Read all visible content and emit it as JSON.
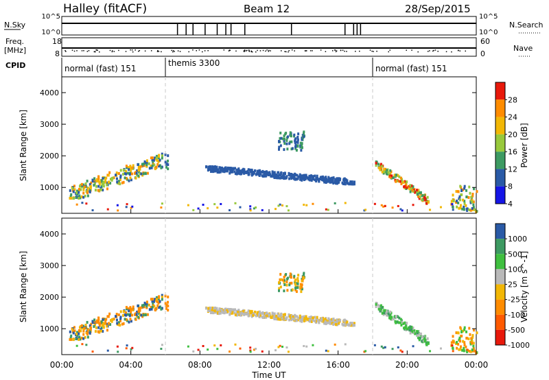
{
  "header": {
    "station": "Halley (fitACF)",
    "beam": "Beam 12",
    "date": "28/Sep/2015"
  },
  "strips": {
    "nsky_label": "N.Sky",
    "nsky_ticks": [
      "10^5",
      "10^0"
    ],
    "nsearch_label": "N.Search",
    "nsearch_ticks": [
      "10^5",
      "10^0"
    ],
    "freq_label": "Freq.",
    "freq_unit": "[MHz]",
    "freq_ticks": [
      "18",
      "8"
    ],
    "nave_label": "Nave",
    "nave_ticks": [
      "60",
      "0"
    ],
    "cpid_label": "CPID",
    "cpid_segments": [
      {
        "label": "normal (fast) 151",
        "start_h": 0,
        "end_h": 6
      },
      {
        "label": "themis 3300",
        "start_h": 6,
        "end_h": 18
      },
      {
        "label": "normal (fast) 151",
        "start_h": 18,
        "end_h": 24
      }
    ],
    "nsky_drops_h": [
      6.7,
      7.2,
      7.6,
      8.3,
      9.0,
      9.5,
      9.8,
      10.6,
      13.3,
      16.4,
      16.9,
      17.1,
      17.3
    ]
  },
  "chart_data": [
    {
      "type": "heatmap",
      "ylabel": "Slant Range [km]",
      "yticks": [
        1000,
        2000,
        3000,
        4000
      ],
      "ylim": [
        180,
        4500
      ],
      "xlim": [
        0,
        24
      ],
      "colorbar": {
        "label": "Power [dB]",
        "ticks": [
          "28",
          "24",
          "20",
          "16",
          "12",
          "8",
          "4"
        ],
        "colors": [
          "#e8190b",
          "#ff8c00",
          "#f2b705",
          "#98c93c",
          "#3d9a62",
          "#2a5aa6",
          "#1515e6"
        ]
      },
      "regions": [
        {
          "x": [
            0.4,
            5.8
          ],
          "y": [
            700,
            2100
          ],
          "color_idx": [
            1,
            2,
            3,
            4,
            5
          ]
        },
        {
          "x": [
            5.9,
            6.1
          ],
          "y": [
            1600,
            2200
          ],
          "color_idx": [
            4,
            5
          ]
        },
        {
          "x": [
            8.3,
            16.9
          ],
          "y": [
            1150,
            1700
          ],
          "color_idx": [
            5
          ]
        },
        {
          "x": [
            12.5,
            14.0
          ],
          "y": [
            2200,
            2800
          ],
          "color_idx": [
            5,
            4
          ]
        },
        {
          "x": [
            18.1,
            21.2
          ],
          "y": [
            500,
            1900
          ],
          "color_idx": [
            0,
            1,
            2,
            3,
            4
          ]
        },
        {
          "x": [
            22.5,
            24
          ],
          "y": [
            250,
            1100
          ],
          "color_idx": [
            1,
            2,
            3,
            4,
            5
          ]
        }
      ]
    },
    {
      "type": "heatmap",
      "ylabel": "Slant Range [km]",
      "yticks": [
        1000,
        2000,
        3000,
        4000
      ],
      "ylim": [
        180,
        4500
      ],
      "xlim": [
        0,
        24
      ],
      "colorbar": {
        "label": "Velocity [m s^-1]",
        "ticks": [
          "1000",
          "500",
          "100",
          "25",
          "-25",
          "-100",
          "-500",
          "-1000"
        ],
        "colors": [
          "#2a5aa6",
          "#3d9a62",
          "#3fbf3f",
          "#b9b9b9",
          "#f2b705",
          "#ff8c00",
          "#ff5a00",
          "#e8190b"
        ]
      },
      "regions": [
        {
          "x": [
            0.4,
            5.8
          ],
          "y": [
            700,
            2100
          ],
          "color_idx": [
            5,
            5,
            4,
            1,
            0
          ]
        },
        {
          "x": [
            5.9,
            6.1
          ],
          "y": [
            1600,
            2200
          ],
          "color_idx": [
            5
          ]
        },
        {
          "x": [
            8.3,
            16.9
          ],
          "y": [
            1150,
            1700
          ],
          "color_idx": [
            3,
            3,
            4
          ]
        },
        {
          "x": [
            12.5,
            14.0
          ],
          "y": [
            2200,
            2800
          ],
          "color_idx": [
            4,
            1,
            5
          ]
        },
        {
          "x": [
            18.1,
            21.2
          ],
          "y": [
            500,
            1900
          ],
          "color_idx": [
            2,
            2,
            1,
            3
          ]
        },
        {
          "x": [
            22.5,
            24
          ],
          "y": [
            250,
            1100
          ],
          "color_idx": [
            4,
            5,
            2
          ]
        }
      ]
    }
  ],
  "xaxis": {
    "ticks": [
      "00:00",
      "04:00",
      "08:00",
      "12:00",
      "16:00",
      "20:00",
      "00:00"
    ],
    "label": "Time UT"
  }
}
